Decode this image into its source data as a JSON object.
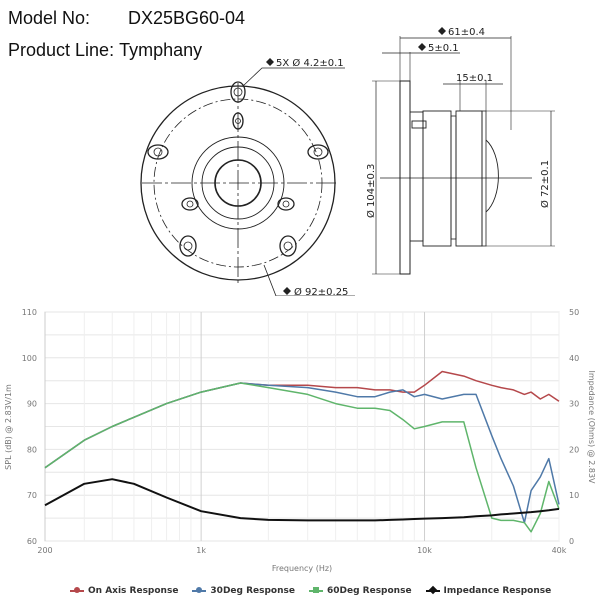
{
  "header": {
    "model_label": "Model No:",
    "model_value": "DX25BG60-04",
    "product_line_label": "Product Line:",
    "product_line_value": "Tymphany"
  },
  "drawing": {
    "front_view": {
      "holes_dim": "5X Ø 4.2±0.1",
      "bolt_circle_dim": "Ø 92±0.25"
    },
    "side_view": {
      "overall_depth_dim": "61±0.4",
      "flange_thickness_dim": "5±0.1",
      "magnet_height_dim": "15±0.1",
      "outer_diameter_dim": "Ø 104±0.3",
      "magnet_diameter_dim": "Ø 72±0.1"
    }
  },
  "chart_data": {
    "type": "line",
    "title": "",
    "xlabel": "Frequency (Hz)",
    "ylabel": "SPL (dB) @ 2.83V/1m",
    "y2label": "Impedance (Ohms) @ 2.83V",
    "xscale": "log",
    "xlim": [
      200,
      40000
    ],
    "ylim": [
      60,
      110
    ],
    "y2lim": [
      0,
      50
    ],
    "x_ticks": [
      "200",
      "1k",
      "10k",
      "40k"
    ],
    "y_ticks": [
      "60",
      "70",
      "80",
      "90",
      "100",
      "110"
    ],
    "y2_ticks": [
      "0",
      "10",
      "20",
      "30",
      "40",
      "50"
    ],
    "grid": true,
    "legend_position": "bottom",
    "x": [
      200,
      300,
      400,
      500,
      700,
      1000,
      1500,
      2000,
      3000,
      4000,
      5000,
      6000,
      7000,
      8000,
      9000,
      10000,
      12000,
      15000,
      17000,
      20000,
      22000,
      25000,
      28000,
      30000,
      33000,
      36000,
      40000
    ],
    "series": [
      {
        "name": "On Axis Response",
        "color": "#b5484b",
        "axis": "left",
        "values": [
          76,
          82,
          85,
          87,
          90,
          92.5,
          94.5,
          94,
          94,
          93.5,
          93.5,
          93,
          93,
          92.5,
          92.5,
          94,
          97,
          96,
          95,
          94,
          93.5,
          93,
          92,
          92.5,
          91,
          92,
          90.5
        ]
      },
      {
        "name": "30Deg Response",
        "color": "#4f79a8",
        "axis": "left",
        "values": [
          76,
          82,
          85,
          87,
          90,
          92.5,
          94.5,
          94,
          93.5,
          92.5,
          91.5,
          91.5,
          92.5,
          93,
          91.5,
          92,
          91,
          92,
          92,
          83,
          78,
          72,
          64,
          71,
          74,
          78,
          68
        ]
      },
      {
        "name": "60Deg Response",
        "color": "#5fb56b",
        "axis": "left",
        "values": [
          76,
          82,
          85,
          87,
          90,
          92.5,
          94.5,
          93.5,
          92,
          90,
          89,
          89,
          88.5,
          86.5,
          84.5,
          85,
          86,
          86,
          76,
          65,
          64.5,
          64.5,
          64,
          62,
          66,
          73,
          67
        ]
      },
      {
        "name": "Impedance Response",
        "color": "#111111",
        "axis": "right",
        "values": [
          7.8,
          12.5,
          13.5,
          12.5,
          9.5,
          6.5,
          5,
          4.6,
          4.5,
          4.5,
          4.5,
          4.5,
          4.6,
          4.7,
          4.8,
          4.9,
          5,
          5.2,
          5.4,
          5.6,
          5.8,
          6,
          6.2,
          6.3,
          6.5,
          6.7,
          7
        ]
      }
    ]
  },
  "legend": {
    "items": [
      {
        "label": "On Axis Response",
        "color": "#b5484b"
      },
      {
        "label": "30Deg Response",
        "color": "#4f79a8"
      },
      {
        "label": "60Deg Response",
        "color": "#5fb56b"
      },
      {
        "label": "Impedance Response",
        "color": "#111111"
      }
    ]
  }
}
